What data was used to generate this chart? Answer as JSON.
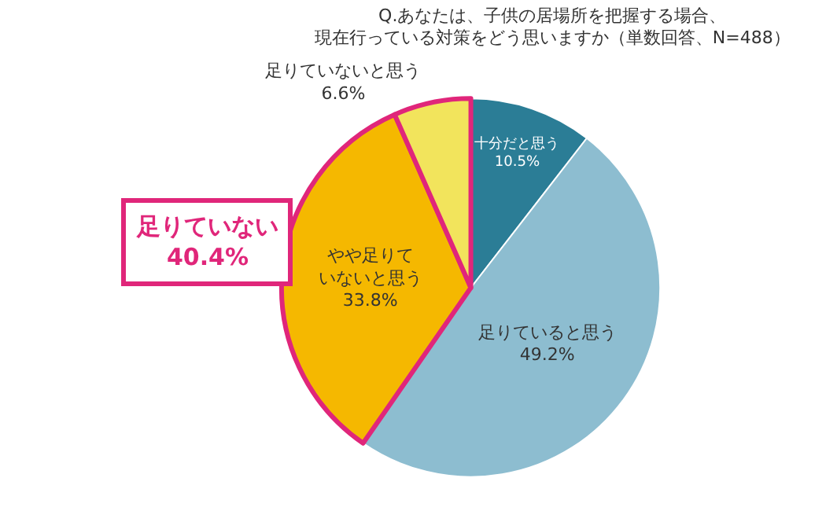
{
  "chart_data": {
    "type": "pie",
    "title": "Q.あなたは、子供の居場所を把握する場合、現在行っている対策をどう思いますか（単数回答、N=488）",
    "categories": [
      "十分だと思う",
      "足りていると思う",
      "やや足りていないと思う",
      "足りていないと思う"
    ],
    "values": [
      10.5,
      49.2,
      33.8,
      6.6
    ],
    "value_labels": [
      "10.5%",
      "49.2%",
      "33.8%",
      "6.6%"
    ],
    "colors": [
      "#2b7d96",
      "#8dbdd0",
      "#f5b800",
      "#f2e45c"
    ],
    "annotations": [
      "足りていない\n40.4%"
    ]
  }
}
